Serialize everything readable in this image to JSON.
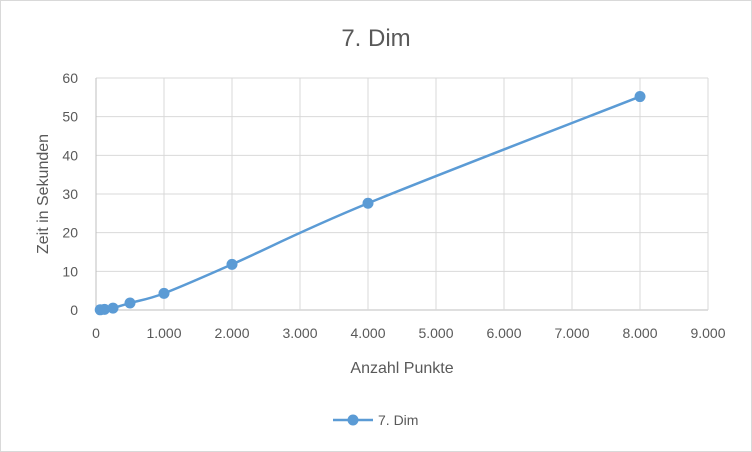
{
  "chart_data": {
    "type": "line",
    "title": "7. Dim",
    "xlabel": "Anzahl Punkte",
    "ylabel": "Zeit in Sekunden",
    "xlim": [
      0,
      9000
    ],
    "ylim": [
      0,
      60
    ],
    "x_ticks": [
      0,
      1000,
      2000,
      3000,
      4000,
      5000,
      6000,
      7000,
      8000,
      9000
    ],
    "x_tick_labels": [
      "0",
      "1.000",
      "2.000",
      "3.000",
      "4.000",
      "5.000",
      "6.000",
      "7.000",
      "8.000",
      "9.000"
    ],
    "y_ticks": [
      0,
      10,
      20,
      30,
      40,
      50,
      60
    ],
    "y_tick_labels": [
      "0",
      "10",
      "20",
      "30",
      "40",
      "50",
      "60"
    ],
    "grid": true,
    "legend_position": "bottom",
    "series": [
      {
        "name": "7. Dim",
        "color": "#5b9bd5",
        "x": [
          62,
          125,
          250,
          500,
          1000,
          2000,
          4000,
          8000
        ],
        "y": [
          0.05,
          0.15,
          0.5,
          1.8,
          4.3,
          11.8,
          27.6,
          55.2
        ]
      }
    ]
  }
}
